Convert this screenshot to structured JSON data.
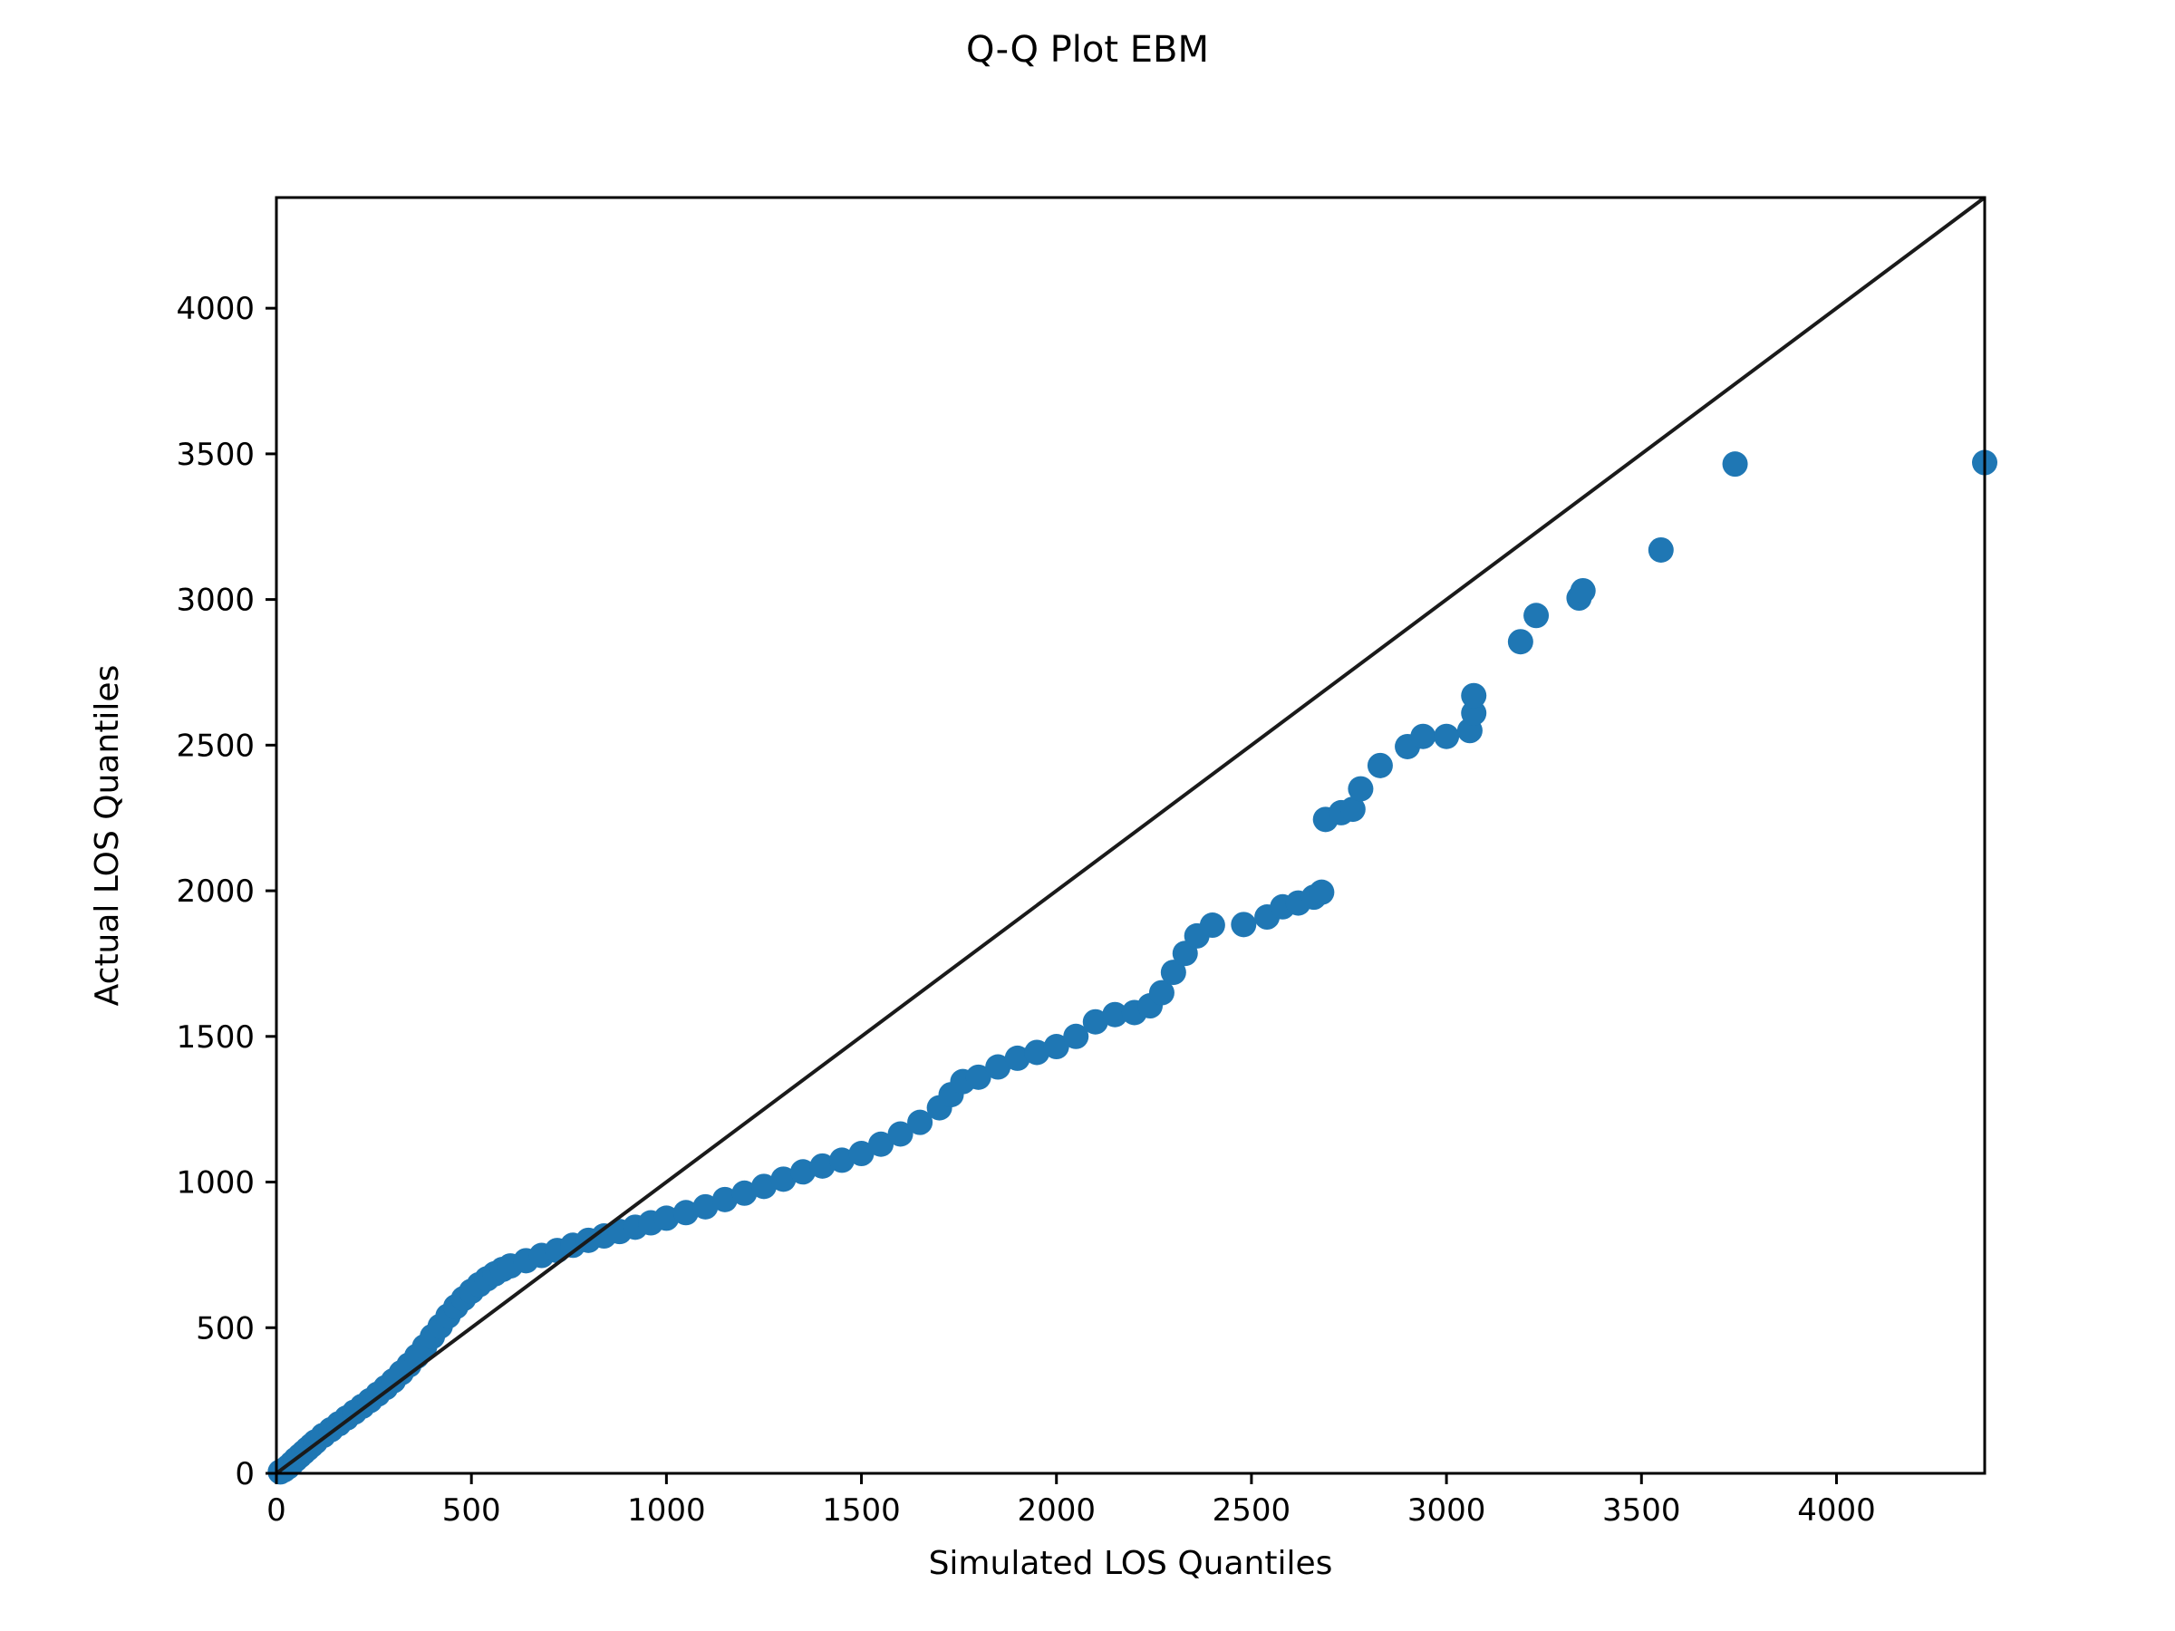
{
  "chart_data": {
    "type": "scatter",
    "title": "Q-Q Plot EBM",
    "xlabel": "Simulated LOS Quantiles",
    "ylabel": "Actual LOS Quantiles",
    "xlim": [
      0,
      4380
    ],
    "ylim": [
      0,
      4380
    ],
    "x_ticks": [
      0,
      500,
      1000,
      1500,
      2000,
      2500,
      3000,
      3500,
      4000
    ],
    "y_ticks": [
      0,
      500,
      1000,
      1500,
      2000,
      2500,
      3000,
      3500,
      4000
    ],
    "grid": false,
    "legend": "none",
    "marker_color": "#1f77b4",
    "reference_line_color": "#1a1a1a",
    "reference_line": [
      [
        0,
        0
      ],
      [
        4380,
        4380
      ]
    ],
    "points": [
      [
        10,
        5
      ],
      [
        20,
        12
      ],
      [
        30,
        22
      ],
      [
        40,
        35
      ],
      [
        50,
        48
      ],
      [
        60,
        60
      ],
      [
        70,
        72
      ],
      [
        80,
        84
      ],
      [
        90,
        96
      ],
      [
        100,
        108
      ],
      [
        120,
        130
      ],
      [
        140,
        150
      ],
      [
        160,
        170
      ],
      [
        180,
        190
      ],
      [
        200,
        210
      ],
      [
        220,
        230
      ],
      [
        240,
        250
      ],
      [
        260,
        272
      ],
      [
        280,
        294
      ],
      [
        300,
        318
      ],
      [
        320,
        345
      ],
      [
        340,
        372
      ],
      [
        360,
        402
      ],
      [
        380,
        435
      ],
      [
        400,
        470
      ],
      [
        420,
        505
      ],
      [
        440,
        540
      ],
      [
        460,
        572
      ],
      [
        480,
        600
      ],
      [
        500,
        625
      ],
      [
        520,
        648
      ],
      [
        540,
        668
      ],
      [
        560,
        685
      ],
      [
        580,
        700
      ],
      [
        600,
        712
      ],
      [
        640,
        730
      ],
      [
        680,
        748
      ],
      [
        720,
        765
      ],
      [
        760,
        783
      ],
      [
        800,
        800
      ],
      [
        840,
        815
      ],
      [
        880,
        830
      ],
      [
        920,
        845
      ],
      [
        960,
        860
      ],
      [
        1000,
        876
      ],
      [
        1050,
        895
      ],
      [
        1100,
        915
      ],
      [
        1150,
        940
      ],
      [
        1200,
        962
      ],
      [
        1250,
        985
      ],
      [
        1300,
        1010
      ],
      [
        1350,
        1035
      ],
      [
        1400,
        1055
      ],
      [
        1450,
        1075
      ],
      [
        1500,
        1098
      ],
      [
        1550,
        1130
      ],
      [
        1600,
        1165
      ],
      [
        1650,
        1205
      ],
      [
        1700,
        1255
      ],
      [
        1730,
        1300
      ],
      [
        1760,
        1345
      ],
      [
        1800,
        1360
      ],
      [
        1850,
        1395
      ],
      [
        1900,
        1425
      ],
      [
        1950,
        1445
      ],
      [
        2000,
        1465
      ],
      [
        2050,
        1500
      ],
      [
        2100,
        1550
      ],
      [
        2150,
        1575
      ],
      [
        2200,
        1582
      ],
      [
        2240,
        1605
      ],
      [
        2270,
        1650
      ],
      [
        2300,
        1720
      ],
      [
        2330,
        1785
      ],
      [
        2360,
        1845
      ],
      [
        2400,
        1882
      ],
      [
        2480,
        1884
      ],
      [
        2540,
        1910
      ],
      [
        2580,
        1945
      ],
      [
        2620,
        1958
      ],
      [
        2660,
        1978
      ],
      [
        2680,
        1995
      ],
      [
        2690,
        2245
      ],
      [
        2730,
        2268
      ],
      [
        2760,
        2280
      ],
      [
        2780,
        2350
      ],
      [
        2830,
        2430
      ],
      [
        2900,
        2495
      ],
      [
        2940,
        2530
      ],
      [
        3000,
        2530
      ],
      [
        3060,
        2550
      ],
      [
        3070,
        2610
      ],
      [
        3070,
        2670
      ],
      [
        3190,
        2855
      ],
      [
        3230,
        2945
      ],
      [
        3340,
        3005
      ],
      [
        3350,
        3030
      ],
      [
        3550,
        3170
      ],
      [
        3740,
        3465
      ],
      [
        4380,
        3470
      ]
    ]
  }
}
